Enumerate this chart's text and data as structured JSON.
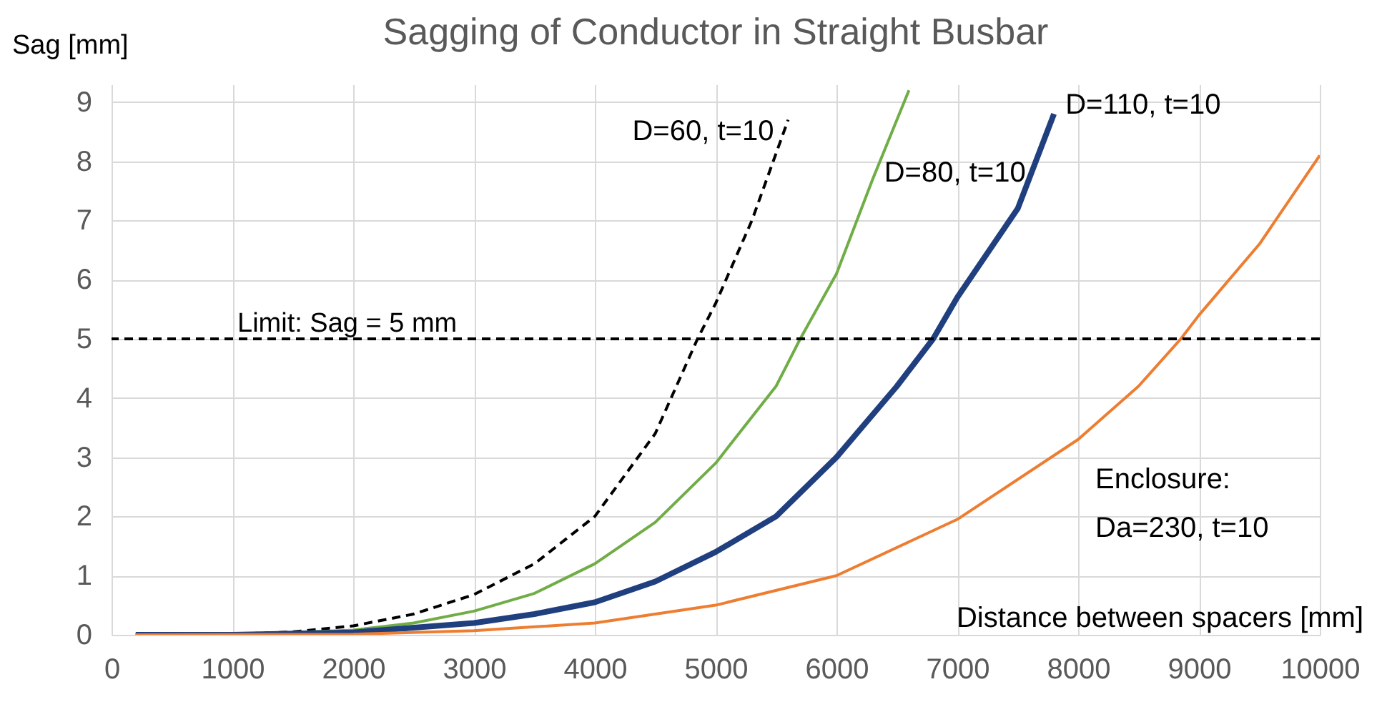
{
  "chart_data": {
    "type": "line",
    "title": "Sagging of  Conductor in Straight Busbar",
    "xlabel": "Distance between spacers [mm]",
    "ylabel": "Sag [mm]",
    "xlim": [
      0,
      10000
    ],
    "xticks": [
      0,
      1000,
      2000,
      3000,
      4000,
      5000,
      6000,
      7000,
      8000,
      9000,
      10000
    ],
    "ylim": [
      0,
      9.3
    ],
    "yticks": [
      0,
      1,
      2,
      3,
      4,
      5,
      6,
      7,
      8,
      9
    ],
    "grid": true,
    "series": [
      {
        "name": "D=60, t=10",
        "color": "#000000",
        "line_style": "dashed",
        "x": [
          200,
          1000,
          1500,
          2000,
          2500,
          3000,
          3500,
          4000,
          4500,
          4850,
          5000,
          5300,
          5600
        ],
        "values": [
          0,
          0.01,
          0.05,
          0.15,
          0.35,
          0.68,
          1.2,
          2.0,
          3.4,
          5.0,
          5.6,
          7.0,
          8.7
        ]
      },
      {
        "name": "D=80, t=10",
        "color": "#70ad47",
        "x": [
          200,
          1000,
          2000,
          2500,
          3000,
          3500,
          4000,
          4500,
          5000,
          5500,
          5700,
          6000,
          6300,
          6600
        ],
        "values": [
          0,
          0,
          0.08,
          0.2,
          0.4,
          0.7,
          1.2,
          1.9,
          2.9,
          4.2,
          5.0,
          6.1,
          7.7,
          9.2
        ]
      },
      {
        "name": "D=110, t=10",
        "color": "#203f7f",
        "x": [
          200,
          1000,
          2000,
          3000,
          3500,
          4000,
          4500,
          5000,
          5500,
          6000,
          6500,
          6800,
          7000,
          7500,
          7800
        ],
        "values": [
          0,
          0,
          0.04,
          0.2,
          0.35,
          0.55,
          0.9,
          1.4,
          2.0,
          3.0,
          4.2,
          5.0,
          5.7,
          7.2,
          8.8
        ]
      },
      {
        "name": "Enclosure: Da=230, t=10",
        "color": "#ed7d31",
        "x": [
          200,
          2000,
          3000,
          4000,
          5000,
          6000,
          7000,
          8000,
          8500,
          8850,
          9000,
          9500,
          10000
        ],
        "values": [
          0,
          0.01,
          0.07,
          0.2,
          0.5,
          1.0,
          1.95,
          3.3,
          4.2,
          5.0,
          5.4,
          6.6,
          8.1
        ]
      }
    ],
    "ref_lines": [
      {
        "axis": "y",
        "value": 5,
        "label": "Limit: Sag = 5 mm",
        "color": "#000000",
        "line_style": "dashed"
      }
    ]
  }
}
